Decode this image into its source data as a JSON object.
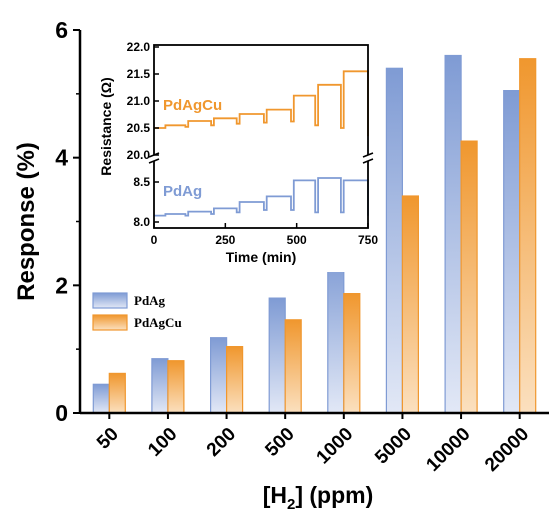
{
  "chart_data": [
    {
      "type": "bar",
      "xlabel_main": "[H",
      "xlabel_sub": "2",
      "xlabel_tail": "] (ppm)",
      "ylabel": "Response (%)",
      "categories": [
        "50",
        "100",
        "200",
        "500",
        "1000",
        "5000",
        "10000",
        "20000"
      ],
      "ylim": [
        0,
        6
      ],
      "yticks": [
        "0",
        "2",
        "4",
        "6"
      ],
      "series": [
        {
          "name": "PdAg",
          "color": "#7f9bd4",
          "values": [
            0.45,
            0.85,
            1.18,
            1.8,
            2.47,
            5.4,
            5.6,
            5.05
          ]
        },
        {
          "name": "PdAgCu",
          "color": "#f0972e",
          "values": [
            0.62,
            0.82,
            1.04,
            1.46,
            1.87,
            3.4,
            4.26,
            5.55
          ]
        }
      ],
      "legend_position": "center-left"
    },
    {
      "type": "line",
      "xlabel": "Time (min)",
      "ylabel": "Resistance (Ω)",
      "xlim": [
        0,
        750
      ],
      "xticks": [
        "0",
        "250",
        "500",
        "750"
      ],
      "yticks_upper": [
        "20.0",
        "20.5",
        "21.0",
        "21.5",
        "22.0"
      ],
      "yticks_lower": [
        "8.0",
        "8.5"
      ],
      "series": [
        {
          "name": "PdAgCu",
          "color": "#f0972e",
          "x": [
            0,
            30,
            40,
            110,
            120,
            200,
            210,
            290,
            300,
            385,
            395,
            480,
            490,
            565,
            575,
            655,
            665,
            750
          ],
          "y": [
            20.5,
            20.5,
            20.55,
            20.52,
            20.63,
            20.55,
            20.68,
            20.58,
            20.76,
            20.6,
            20.84,
            20.62,
            21.1,
            20.55,
            21.3,
            20.5,
            21.55,
            20.35
          ]
        },
        {
          "name": "PdAg",
          "color": "#7f9bd4",
          "x": [
            0,
            30,
            40,
            110,
            120,
            200,
            210,
            290,
            300,
            385,
            395,
            480,
            490,
            565,
            575,
            655,
            665,
            750
          ],
          "y": [
            8.08,
            8.08,
            8.1,
            8.08,
            8.13,
            8.1,
            8.17,
            8.12,
            8.25,
            8.15,
            8.32,
            8.15,
            8.52,
            8.12,
            8.55,
            8.12,
            8.52,
            8.08
          ]
        }
      ],
      "label_upper": "PdAgCu",
      "label_lower": "PdAg"
    }
  ]
}
